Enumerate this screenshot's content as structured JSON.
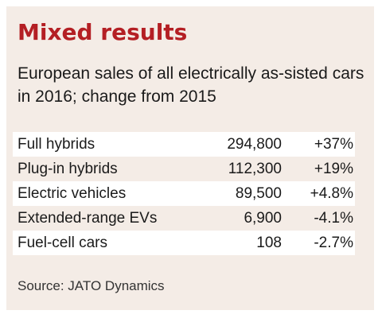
{
  "title": "Mixed results",
  "subtitle": "European sales of all electrically as-sisted cars in 2016; change from 2015",
  "source": "Source: JATO Dynamics",
  "colors": {
    "title": "#b41f24",
    "panel_background": "#f4ece6",
    "row_shading": "#ffffff"
  },
  "chart_data": {
    "type": "table",
    "title": "Mixed results",
    "subtitle": "European sales of all electrically as-sisted cars in 2016; change from 2015",
    "rows": [
      {
        "label": "Full hybrids",
        "sales": "294,800",
        "change": "+37%"
      },
      {
        "label": "Plug-in hybrids",
        "sales": "112,300",
        "change": "+19%"
      },
      {
        "label": "Electric vehicles",
        "sales": "89,500",
        "change": "+4.8%"
      },
      {
        "label": "Extended-range EVs",
        "sales": "6,900",
        "change": "-4.1%"
      },
      {
        "label": "Fuel-cell cars",
        "sales": "108",
        "change": "-2.7%"
      }
    ],
    "source": "Source: JATO Dynamics"
  }
}
